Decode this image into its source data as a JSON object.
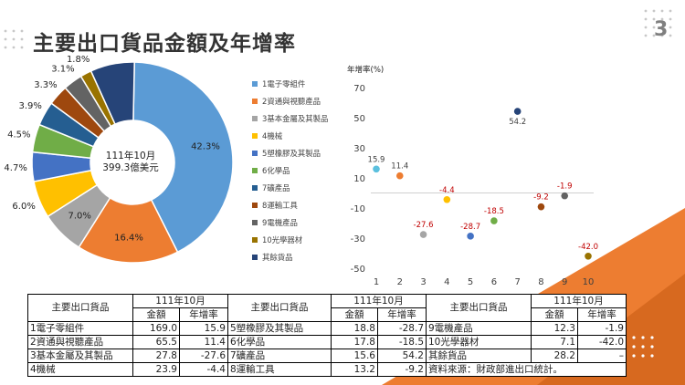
{
  "page": {
    "title": "主要出口貨品金額及年增率",
    "page_number": "3"
  },
  "colors": {
    "accent_orange": "#ed7d31",
    "deep_orange": "#c55a11",
    "accent_gray": "#d0d0d0"
  },
  "chart_data": [
    {
      "type": "pie",
      "style": "donut",
      "center_text": [
        "111年10月",
        "399.3億美元"
      ],
      "legend_position": "right",
      "slices": [
        {
          "label": "1電子零組件",
          "value": 42.3,
          "value_label": "42.3%",
          "color": "#5b9bd5"
        },
        {
          "label": "2資通與視聽產品",
          "value": 16.4,
          "value_label": "16.4%",
          "color": "#ed7d31"
        },
        {
          "label": "3基本金屬及其製品",
          "value": 7.0,
          "value_label": "7.0%",
          "color": "#a5a5a5"
        },
        {
          "label": "4機械",
          "value": 6.0,
          "value_label": "6.0%",
          "color": "#ffc000"
        },
        {
          "label": "5塑橡膠及其製品",
          "value": 4.7,
          "value_label": "4.7%",
          "color": "#4472c4"
        },
        {
          "label": "6化學品",
          "value": 4.5,
          "value_label": "4.5%",
          "color": "#70ad47"
        },
        {
          "label": "7礦產品",
          "value": 3.9,
          "value_label": "3.9%",
          "color": "#255e91"
        },
        {
          "label": "8運輸工具",
          "value": 3.3,
          "value_label": "3.3%",
          "color": "#9e480e"
        },
        {
          "label": "9電機產品",
          "value": 3.1,
          "value_label": "3.1%",
          "color": "#636363"
        },
        {
          "label": "10光學器材",
          "value": 1.8,
          "value_label": "1.8%",
          "color": "#997300"
        },
        {
          "label": "其餘貨品",
          "value": 7.1,
          "value_label": "7.1%",
          "color": "#264478"
        }
      ]
    },
    {
      "type": "scatter",
      "ylabel": "年增率(%)",
      "ylim": [
        -50,
        70
      ],
      "yticks": [
        70,
        50,
        30,
        10,
        -10,
        -30,
        -50
      ],
      "xlim": [
        1,
        10
      ],
      "xticks": [
        1,
        2,
        3,
        4,
        5,
        6,
        7,
        8,
        9,
        10
      ],
      "points": [
        {
          "x": 1,
          "y": 15.9,
          "label": "15.9",
          "color": "#5bc0de",
          "label_color": "#404040"
        },
        {
          "x": 2,
          "y": 11.4,
          "label": "11.4",
          "color": "#ed7d31",
          "label_color": "#404040"
        },
        {
          "x": 3,
          "y": -27.6,
          "label": "-27.6",
          "color": "#a5a5a5",
          "label_color": "#c00000"
        },
        {
          "x": 4,
          "y": -4.4,
          "label": "-4.4",
          "color": "#ffc000",
          "label_color": "#c00000"
        },
        {
          "x": 5,
          "y": -28.7,
          "label": "-28.7",
          "color": "#4472c4",
          "label_color": "#c00000"
        },
        {
          "x": 6,
          "y": -18.5,
          "label": "-18.5",
          "color": "#70ad47",
          "label_color": "#c00000"
        },
        {
          "x": 7,
          "y": 54.2,
          "label": "54.2",
          "color": "#264478",
          "label_color": "#404040"
        },
        {
          "x": 8,
          "y": -9.2,
          "label": "-9.2",
          "color": "#9e480e",
          "label_color": "#c00000"
        },
        {
          "x": 9,
          "y": -1.9,
          "label": "-1.9",
          "color": "#636363",
          "label_color": "#c00000"
        },
        {
          "x": 10,
          "y": -42.0,
          "label": "-42.0",
          "color": "#997300",
          "label_color": "#c00000"
        }
      ]
    }
  ],
  "table": {
    "group_header": "主要出口貨品",
    "period": "111年10月",
    "col_amount": "金額",
    "col_growth": "年增率",
    "columns": [
      {
        "rows": [
          {
            "item": "1電子零組件",
            "amount": "169.0",
            "growth": "15.9"
          },
          {
            "item": "2資通與視聽產品",
            "amount": "65.5",
            "growth": "11.4"
          },
          {
            "item": "3基本金屬及其製品",
            "amount": "27.8",
            "growth": "-27.6"
          },
          {
            "item": "4機械",
            "amount": "23.9",
            "growth": "-4.4"
          }
        ]
      },
      {
        "rows": [
          {
            "item": "5塑橡膠及其製品",
            "amount": "18.8",
            "growth": "-28.7"
          },
          {
            "item": "6化學品",
            "amount": "17.8",
            "growth": "-18.5"
          },
          {
            "item": "7礦產品",
            "amount": "15.6",
            "growth": "54.2"
          },
          {
            "item": "8運輸工具",
            "amount": "13.2",
            "growth": "-9.2"
          }
        ]
      },
      {
        "rows": [
          {
            "item": "9電機產品",
            "amount": "12.3",
            "growth": "-1.9"
          },
          {
            "item": "10光學器材",
            "amount": "7.1",
            "growth": "-42.0"
          },
          {
            "item": "其餘貨品",
            "amount": "28.2",
            "growth": "–"
          }
        ]
      }
    ],
    "source": "資料來源：財政部進出口統計。"
  }
}
